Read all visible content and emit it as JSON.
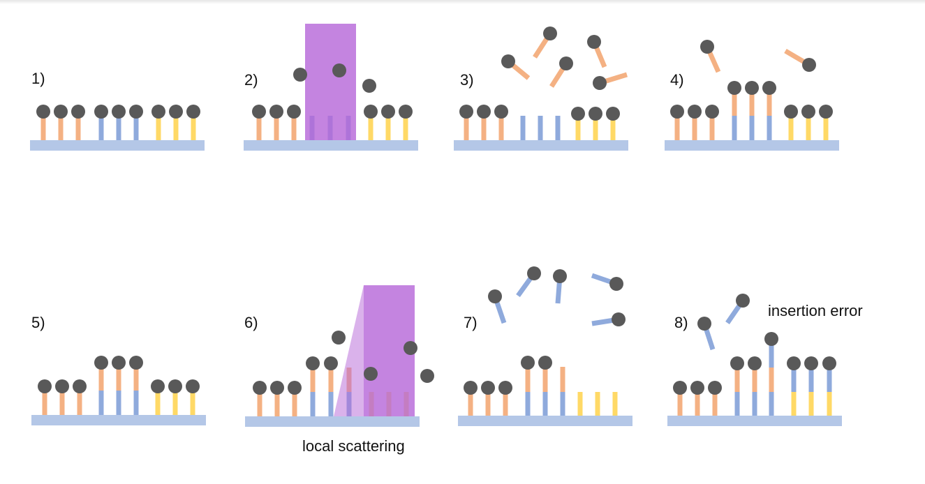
{
  "colors": {
    "base": "#b4c7e7",
    "a": "#f4b183",
    "b": "#8faadc",
    "c": "#ffd966",
    "bead": "#595959",
    "light": "#b565d8"
  },
  "steps": [
    {
      "label": "1)"
    },
    {
      "label": "2)"
    },
    {
      "label": "3)"
    },
    {
      "label": "4)"
    },
    {
      "label": "5)"
    },
    {
      "label": "6)"
    },
    {
      "label": "7)"
    },
    {
      "label": "8)"
    }
  ],
  "annotations": {
    "local_scattering": "local scattering",
    "insertion_error": "insertion error"
  }
}
